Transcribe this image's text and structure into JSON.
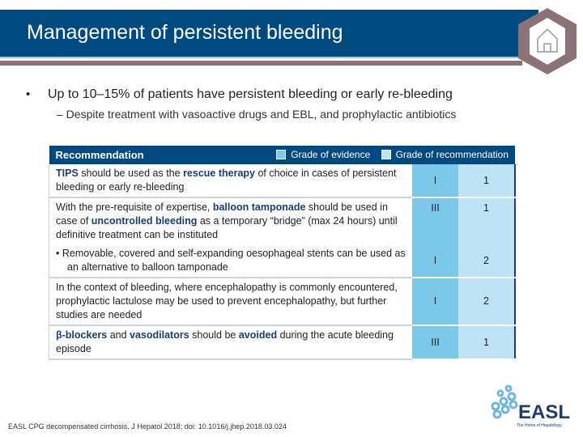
{
  "title": "Management of persistent bleeding",
  "bullet_marker": "•",
  "bullet": "Up to 10–15% of patients have persistent bleeding or early re-bleeding",
  "sub_bullet": "– Despite treatment with vasoactive drugs and EBL, and prophylactic antibiotics",
  "table": {
    "header": "Recommendation",
    "legend_evidence": "Grade of evidence",
    "legend_recommendation": "Grade of recommendation",
    "colors": {
      "evidence": "#7cc8e8",
      "recommendation": "#bde3f4",
      "header": "#004a80"
    },
    "rows": [
      {
        "segments": [
          {
            "t": "TIPS",
            "k": 1
          },
          {
            "t": " should be used as the "
          },
          {
            "t": "rescue therapy",
            "k": 1
          },
          {
            "t": " of choice in cases of persistent bleeding or early re-bleeding"
          }
        ],
        "evidence": "I",
        "recommendation": "1"
      },
      {
        "segments": [
          {
            "t": "With the pre-requisite of expertise, "
          },
          {
            "t": "balloon tamponade",
            "k": 1
          },
          {
            "t": " should be used in case of "
          },
          {
            "t": "uncontrolled bleeding",
            "k": 1
          },
          {
            "t": " as a temporary “bridge” (max 24 hours) until definitive treatment can be instituted"
          }
        ],
        "evidence": "III",
        "recommendation": "1"
      },
      {
        "segments": [
          {
            "t": "• Removable, covered and self-expanding oesophageal stents can be used as an alternative to balloon tamponade"
          }
        ],
        "evidence": "I",
        "recommendation": "2"
      },
      {
        "segments": [
          {
            "t": "In the context of bleeding, where encephalopathy is commonly encountered, prophylactic lactulose may be used to prevent encephalopathy, but further studies are needed"
          }
        ],
        "evidence": "I",
        "recommendation": "2"
      },
      {
        "segments": [
          {
            "t": "β-blockers",
            "k": 1
          },
          {
            "t": " and "
          },
          {
            "t": "vasodilators",
            "k": 1
          },
          {
            "t": " should be "
          },
          {
            "t": "avoided",
            "k": 1
          },
          {
            "t": " during the acute bleeding episode"
          }
        ],
        "evidence": "III",
        "recommendation": "1"
      }
    ]
  },
  "footer": "EASL CPG decompensated cirrhosis. J Hepatol 2018; doi: 10.1016/j.jhep.2018.03.024",
  "logo": {
    "text": "EASL",
    "tagline": "The Home of Hepatology"
  }
}
